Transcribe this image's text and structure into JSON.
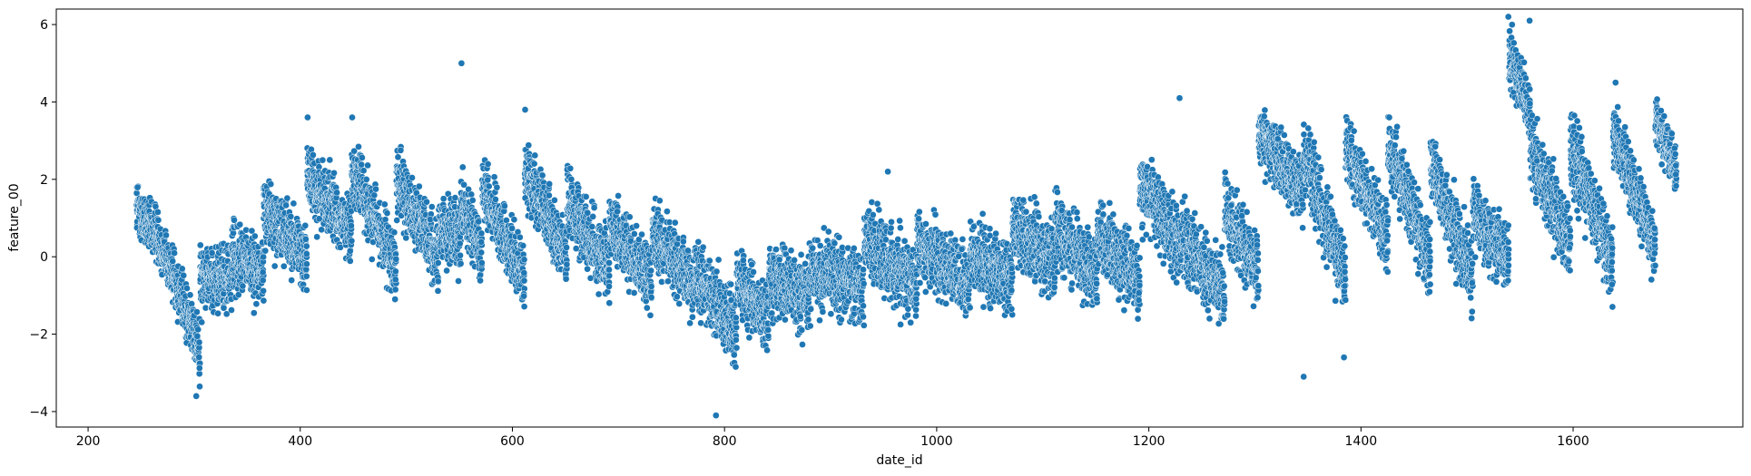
{
  "chart_data": {
    "type": "scatter",
    "title": "",
    "xlabel": "date_id",
    "ylabel": "feature_00",
    "xlim": [
      170,
      1760
    ],
    "ylim": [
      -4.4,
      6.4
    ],
    "x_ticks": [
      200,
      400,
      600,
      800,
      1000,
      1200,
      1400,
      1600
    ],
    "y_ticks": [
      -4,
      -2,
      0,
      2,
      4,
      6
    ],
    "grid": false,
    "legend": "none",
    "point_color": "#1f77b4",
    "point_edge_color": "#ffffff",
    "x_range_observed": [
      246,
      1698
    ],
    "segments": [
      {
        "x0": 246,
        "x1": 262,
        "y_start": 1.3,
        "y_end": 0.5,
        "spread": 0.7
      },
      {
        "x0": 262,
        "x1": 306,
        "y_start": 0.8,
        "y_end": -2.4,
        "spread": 0.7
      },
      {
        "x0": 306,
        "x1": 336,
        "y_start": -0.5,
        "y_end": -0.6,
        "spread": 0.8
      },
      {
        "x0": 336,
        "x1": 366,
        "y_start": 0.0,
        "y_end": -0.4,
        "spread": 0.8
      },
      {
        "x0": 366,
        "x1": 407,
        "y_start": 1.2,
        "y_end": 0.0,
        "spread": 0.8
      },
      {
        "x0": 407,
        "x1": 449,
        "y_start": 2.0,
        "y_end": 0.6,
        "spread": 0.8
      },
      {
        "x0": 449,
        "x1": 491,
        "y_start": 2.3,
        "y_end": -0.4,
        "spread": 0.8
      },
      {
        "x0": 491,
        "x1": 531,
        "y_start": 2.0,
        "y_end": 0.0,
        "spread": 0.8
      },
      {
        "x0": 531,
        "x1": 552,
        "y_start": 0.8,
        "y_end": 0.4,
        "spread": 0.8
      },
      {
        "x0": 552,
        "x1": 572,
        "y_start": 1.2,
        "y_end": 0.2,
        "spread": 0.8
      },
      {
        "x0": 572,
        "x1": 612,
        "y_start": 1.8,
        "y_end": -0.6,
        "spread": 0.8
      },
      {
        "x0": 612,
        "x1": 652,
        "y_start": 2.2,
        "y_end": 0.0,
        "spread": 0.8
      },
      {
        "x0": 652,
        "x1": 692,
        "y_start": 1.4,
        "y_end": -0.4,
        "spread": 0.8
      },
      {
        "x0": 692,
        "x1": 732,
        "y_start": 0.8,
        "y_end": -0.6,
        "spread": 0.8
      },
      {
        "x0": 732,
        "x1": 772,
        "y_start": 0.6,
        "y_end": -0.8,
        "spread": 0.8
      },
      {
        "x0": 772,
        "x1": 812,
        "y_start": -0.4,
        "y_end": -2.0,
        "spread": 0.9
      },
      {
        "x0": 812,
        "x1": 842,
        "y_start": -0.6,
        "y_end": -1.6,
        "spread": 0.9
      },
      {
        "x0": 842,
        "x1": 882,
        "y_start": -0.6,
        "y_end": -1.0,
        "spread": 0.9
      },
      {
        "x0": 882,
        "x1": 932,
        "y_start": -0.4,
        "y_end": -0.8,
        "spread": 0.9
      },
      {
        "x0": 932,
        "x1": 982,
        "y_start": 0.4,
        "y_end": -0.8,
        "spread": 0.9
      },
      {
        "x0": 982,
        "x1": 1032,
        "y_start": 0.4,
        "y_end": -0.8,
        "spread": 0.9
      },
      {
        "x0": 1032,
        "x1": 1072,
        "y_start": 0.0,
        "y_end": -0.6,
        "spread": 0.9
      },
      {
        "x0": 1072,
        "x1": 1112,
        "y_start": 0.8,
        "y_end": -0.2,
        "spread": 0.9
      },
      {
        "x0": 1112,
        "x1": 1152,
        "y_start": 0.8,
        "y_end": -0.6,
        "spread": 0.9
      },
      {
        "x0": 1152,
        "x1": 1192,
        "y_start": 0.6,
        "y_end": -0.6,
        "spread": 0.9
      },
      {
        "x0": 1192,
        "x1": 1232,
        "y_start": 1.8,
        "y_end": 0.2,
        "spread": 0.9
      },
      {
        "x0": 1232,
        "x1": 1272,
        "y_start": 0.4,
        "y_end": -1.0,
        "spread": 0.9
      },
      {
        "x0": 1272,
        "x1": 1304,
        "y_start": 1.2,
        "y_end": -0.4,
        "spread": 0.9
      },
      {
        "x0": 1304,
        "x1": 1346,
        "y_start": 3.2,
        "y_end": 1.6,
        "spread": 0.8
      },
      {
        "x0": 1346,
        "x1": 1386,
        "y_start": 2.6,
        "y_end": -0.6,
        "spread": 0.9
      },
      {
        "x0": 1386,
        "x1": 1426,
        "y_start": 2.8,
        "y_end": 0.4,
        "spread": 0.8
      },
      {
        "x0": 1426,
        "x1": 1466,
        "y_start": 2.8,
        "y_end": -0.2,
        "spread": 0.9
      },
      {
        "x0": 1466,
        "x1": 1506,
        "y_start": 2.4,
        "y_end": -0.6,
        "spread": 0.9
      },
      {
        "x0": 1506,
        "x1": 1540,
        "y_start": 1.2,
        "y_end": -0.2,
        "spread": 0.8
      },
      {
        "x0": 1540,
        "x1": 1560,
        "y_start": 5.2,
        "y_end": 3.8,
        "spread": 0.7
      },
      {
        "x0": 1560,
        "x1": 1598,
        "y_start": 2.8,
        "y_end": 0.2,
        "spread": 0.9
      },
      {
        "x0": 1598,
        "x1": 1638,
        "y_start": 2.8,
        "y_end": -0.2,
        "spread": 0.9
      },
      {
        "x0": 1638,
        "x1": 1678,
        "y_start": 3.2,
        "y_end": 0.2,
        "spread": 0.8
      },
      {
        "x0": 1678,
        "x1": 1698,
        "y_start": 3.6,
        "y_end": 2.2,
        "spread": 0.7
      }
    ],
    "notable_points": [
      {
        "x": 552,
        "y": 5.0
      },
      {
        "x": 792,
        "y": -4.1
      },
      {
        "x": 302,
        "y": -3.6
      },
      {
        "x": 1539,
        "y": 6.2
      },
      {
        "x": 1559,
        "y": 6.1
      },
      {
        "x": 1640,
        "y": 4.5
      },
      {
        "x": 1346,
        "y": -3.1
      },
      {
        "x": 407,
        "y": 3.6
      },
      {
        "x": 449,
        "y": 3.6
      },
      {
        "x": 612,
        "y": 3.8
      },
      {
        "x": 954,
        "y": 2.2
      },
      {
        "x": 1229,
        "y": 4.1
      },
      {
        "x": 1384,
        "y": -2.6
      }
    ]
  }
}
